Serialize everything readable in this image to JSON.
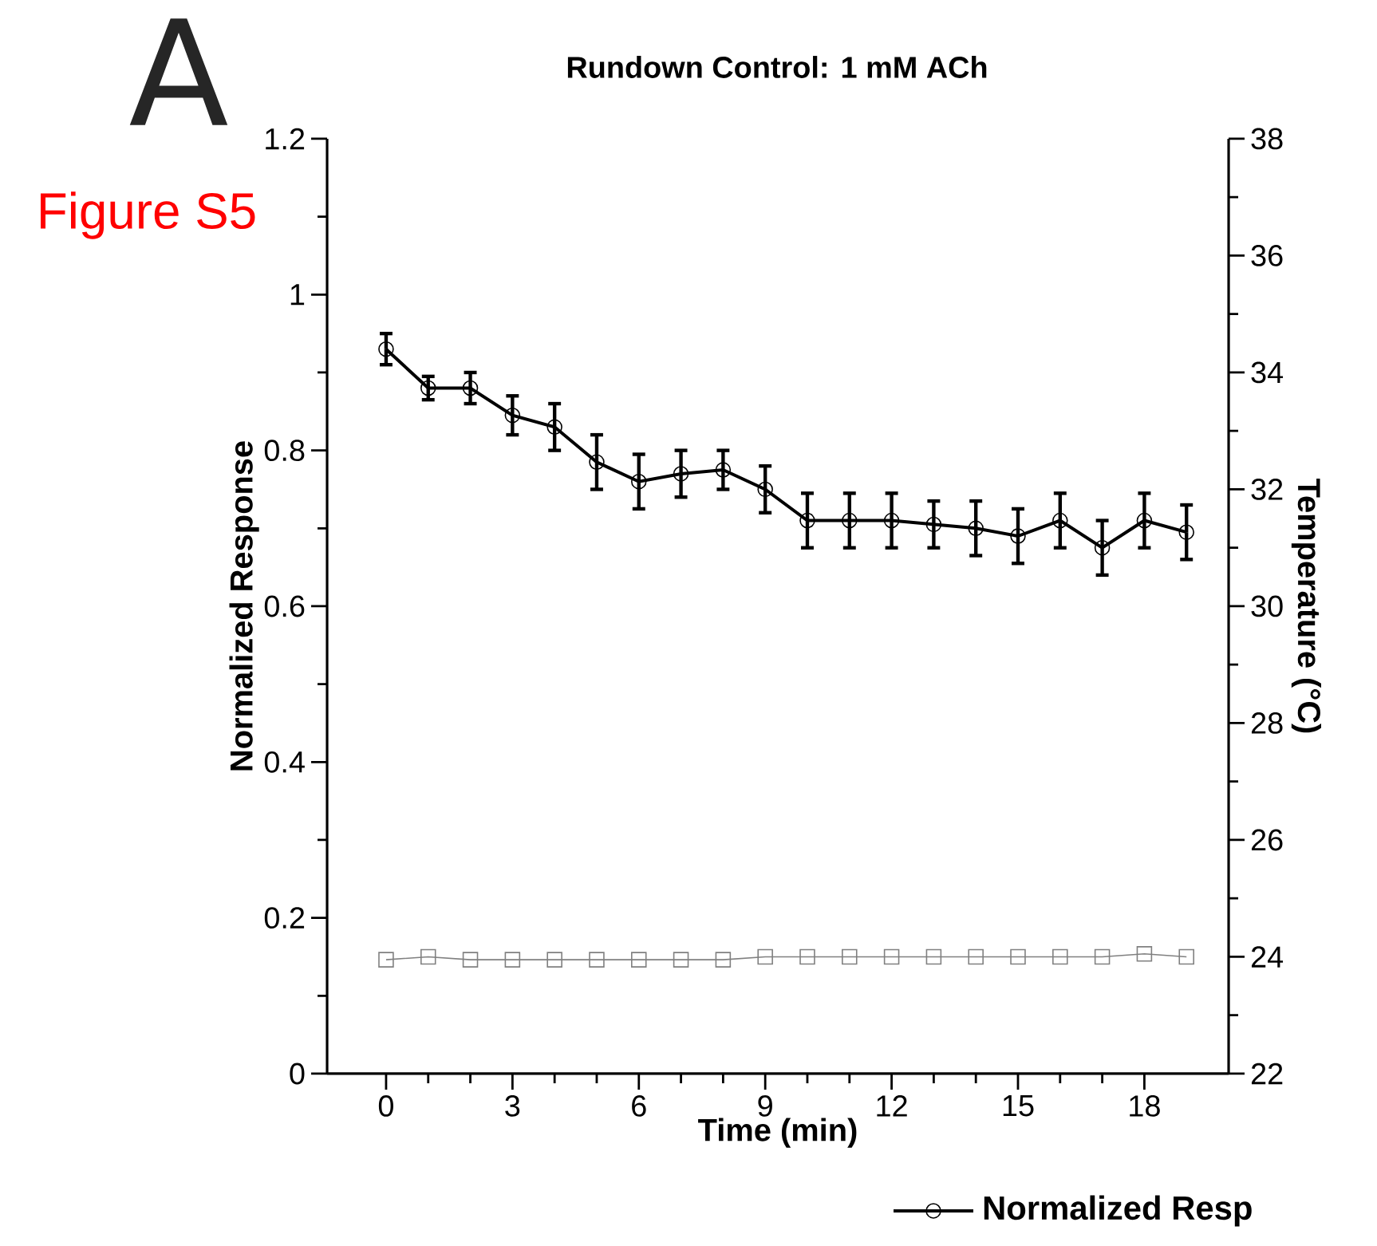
{
  "chart_data": {
    "type": "line",
    "title": "Rundown Control:  1 mM ACh",
    "xlabel": "Time (min)",
    "ylabel": "Normalized Response",
    "y2label": "Temperature (°C)",
    "annotations": [
      "A",
      "Figure S5"
    ],
    "x": [
      0,
      1,
      2,
      3,
      4,
      5,
      6,
      7,
      8,
      9,
      10,
      11,
      12,
      13,
      14,
      15,
      16,
      17,
      18,
      19
    ],
    "series": [
      {
        "name": "Normalized Resp",
        "color": "#000000",
        "marker": "circle",
        "values": [
          0.93,
          0.88,
          0.88,
          0.845,
          0.83,
          0.785,
          0.76,
          0.77,
          0.775,
          0.75,
          0.71,
          0.71,
          0.71,
          0.705,
          0.7,
          0.69,
          0.71,
          0.675,
          0.71,
          0.695
        ],
        "errors": [
          0.02,
          0.015,
          0.02,
          0.025,
          0.03,
          0.035,
          0.035,
          0.03,
          0.025,
          0.03,
          0.035,
          0.035,
          0.035,
          0.03,
          0.035,
          0.035,
          0.035,
          0.035,
          0.035,
          0.035
        ]
      },
      {
        "color": "#808080",
        "marker": "square",
        "axis": "y2",
        "values": [
          23.95,
          24,
          23.95,
          23.95,
          23.95,
          23.95,
          23.95,
          23.95,
          23.95,
          24,
          24,
          24,
          24,
          24,
          24,
          24,
          24,
          24,
          24.05,
          24
        ]
      }
    ],
    "xlim": [
      -1.4,
      20
    ],
    "xticks": [
      0,
      3,
      6,
      9,
      12,
      15,
      18
    ],
    "ylim": [
      0,
      1.2
    ],
    "yticks": [
      0,
      0.2,
      0.4,
      0.6,
      0.8,
      1,
      1.2
    ],
    "y2lim": [
      22,
      38
    ],
    "y2ticks": [
      22,
      24,
      26,
      28,
      30,
      32,
      34,
      36,
      38
    ],
    "legend": "bottom",
    "grid": false,
    "line_style": "solid"
  }
}
